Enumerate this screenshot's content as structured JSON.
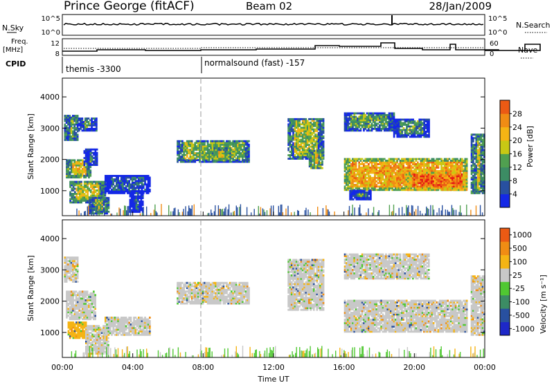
{
  "header": {
    "station": "Prince George (fitACF)",
    "beam": "Beam 02",
    "date": "28/Jan/2009"
  },
  "status_panel": {
    "nsky_label": "N.Sky",
    "nsky_ticks": [
      "10^5",
      "10^0"
    ],
    "nsearch_label": "N.Search",
    "nsearch_ticks": [
      "10^5",
      "10^0"
    ],
    "freq_label": "Freq.",
    "freq_unit": "[MHz]",
    "freq_ticks": [
      "12",
      "8"
    ],
    "nave_label": "Nave",
    "nave_ticks": [
      "60",
      "0"
    ],
    "cpid_label": "CPID",
    "cpid_segments": [
      {
        "text": "themis -3300",
        "start_hour": 0,
        "end_hour": 8
      },
      {
        "text": "normalsound (fast) -157",
        "start_hour": 8,
        "end_hour": 24
      }
    ]
  },
  "colors": {
    "power": [
      "#1428e6",
      "#2850a0",
      "#3c8c64",
      "#50a050",
      "#c8c814",
      "#f5b414",
      "#f08c14",
      "#eb5a14",
      "#e61414"
    ],
    "velocity": [
      "#1e28c8",
      "#2850a0",
      "#3c8c64",
      "#50c832",
      "#c8c8c8",
      "#f5b414",
      "#f08c14",
      "#eb5a14",
      "#e61414"
    ]
  },
  "chart_data": [
    {
      "type": "heatmap",
      "panel": "power",
      "xlabel": "",
      "ylabel": "Slant Range [km]",
      "xlim": [
        0,
        24
      ],
      "ylim": [
        200,
        4600
      ],
      "yticks": [
        "1000",
        "2000",
        "3000",
        "4000"
      ],
      "colorbar": {
        "label": "Power [dB]",
        "min": 0,
        "max": 32,
        "ticks": [
          "4",
          "8",
          "12",
          "16",
          "20",
          "24",
          "28"
        ]
      },
      "regions": [
        {
          "t0": 0.1,
          "t1": 0.9,
          "r0": 2600,
          "r1": 3400,
          "level": 0.45
        },
        {
          "t0": 0.9,
          "t1": 1.9,
          "r0": 2900,
          "r1": 3300,
          "level": 0.35
        },
        {
          "t0": 0.2,
          "t1": 1.6,
          "r0": 1400,
          "r1": 2000,
          "level": 0.55
        },
        {
          "t0": 1.2,
          "t1": 2.0,
          "r0": 1800,
          "r1": 2300,
          "level": 0.3
        },
        {
          "t0": 0.4,
          "t1": 2.4,
          "r0": 600,
          "r1": 1300,
          "level": 0.5
        },
        {
          "t0": 1.5,
          "t1": 2.6,
          "r0": 250,
          "r1": 800,
          "level": 0.45
        },
        {
          "t0": 2.4,
          "t1": 5.0,
          "r0": 900,
          "r1": 1500,
          "level": 0.15
        },
        {
          "t0": 3.8,
          "t1": 4.6,
          "r0": 300,
          "r1": 1000,
          "level": 0.2
        },
        {
          "t0": 6.5,
          "t1": 10.6,
          "r0": 1900,
          "r1": 2600,
          "level": 0.4
        },
        {
          "t0": 8.5,
          "t1": 9.5,
          "r0": 1950,
          "r1": 2350,
          "level": 0.6
        },
        {
          "t0": 12.8,
          "t1": 14.8,
          "r0": 2000,
          "r1": 3300,
          "level": 0.45
        },
        {
          "t0": 14.0,
          "t1": 14.8,
          "r0": 1700,
          "r1": 2300,
          "level": 0.6
        },
        {
          "t0": 16.0,
          "t1": 18.8,
          "r0": 2900,
          "r1": 3500,
          "level": 0.35
        },
        {
          "t0": 18.8,
          "t1": 20.8,
          "r0": 2700,
          "r1": 3300,
          "level": 0.3
        },
        {
          "t0": 16.0,
          "t1": 23.0,
          "r0": 1000,
          "r1": 2000,
          "level": 0.65
        },
        {
          "t0": 19.5,
          "t1": 23.0,
          "r0": 1000,
          "r1": 1600,
          "level": 0.8
        },
        {
          "t0": 16.3,
          "t1": 17.5,
          "r0": 700,
          "r1": 1000,
          "level": 0.3
        },
        {
          "t0": 23.2,
          "t1": 24.0,
          "r0": 900,
          "r1": 2800,
          "level": 0.5
        }
      ]
    },
    {
      "type": "heatmap",
      "panel": "velocity",
      "xlabel": "Time UT",
      "ylabel": "Slant Range [km]",
      "xlim": [
        0,
        24
      ],
      "ylim": [
        200,
        4600
      ],
      "yticks": [
        "1000",
        "2000",
        "3000",
        "4000"
      ],
      "xticks": [
        "00:00",
        "04:00",
        "08:00",
        "12:00",
        "16:00",
        "20:00",
        "00:00"
      ],
      "colorbar": {
        "label": "Velocity [m s⁻¹]",
        "ticks": [
          "1000",
          "500",
          "100",
          "25",
          "-25",
          "-100",
          "-500",
          "-1000"
        ]
      },
      "regions": [
        {
          "t0": 0.1,
          "t1": 0.9,
          "r0": 2600,
          "r1": 3400,
          "level": 4
        },
        {
          "t0": 0.2,
          "t1": 1.9,
          "r0": 1400,
          "r1": 2300,
          "level": 4
        },
        {
          "t0": 0.3,
          "t1": 1.3,
          "r0": 800,
          "r1": 1300,
          "level": 5
        },
        {
          "t0": 1.3,
          "t1": 2.6,
          "r0": 300,
          "r1": 1200,
          "level": 4
        },
        {
          "t0": 2.4,
          "t1": 5.0,
          "r0": 900,
          "r1": 1500,
          "level": 4
        },
        {
          "t0": 6.5,
          "t1": 10.6,
          "r0": 1900,
          "r1": 2600,
          "level": 4
        },
        {
          "t0": 12.8,
          "t1": 14.8,
          "r0": 1700,
          "r1": 3300,
          "level": 4
        },
        {
          "t0": 16.0,
          "t1": 20.8,
          "r0": 2700,
          "r1": 3500,
          "level": 4
        },
        {
          "t0": 16.0,
          "t1": 23.0,
          "r0": 1000,
          "r1": 2000,
          "level": 4
        },
        {
          "t0": 23.2,
          "t1": 24.0,
          "r0": 900,
          "r1": 2800,
          "level": 4
        }
      ]
    }
  ]
}
